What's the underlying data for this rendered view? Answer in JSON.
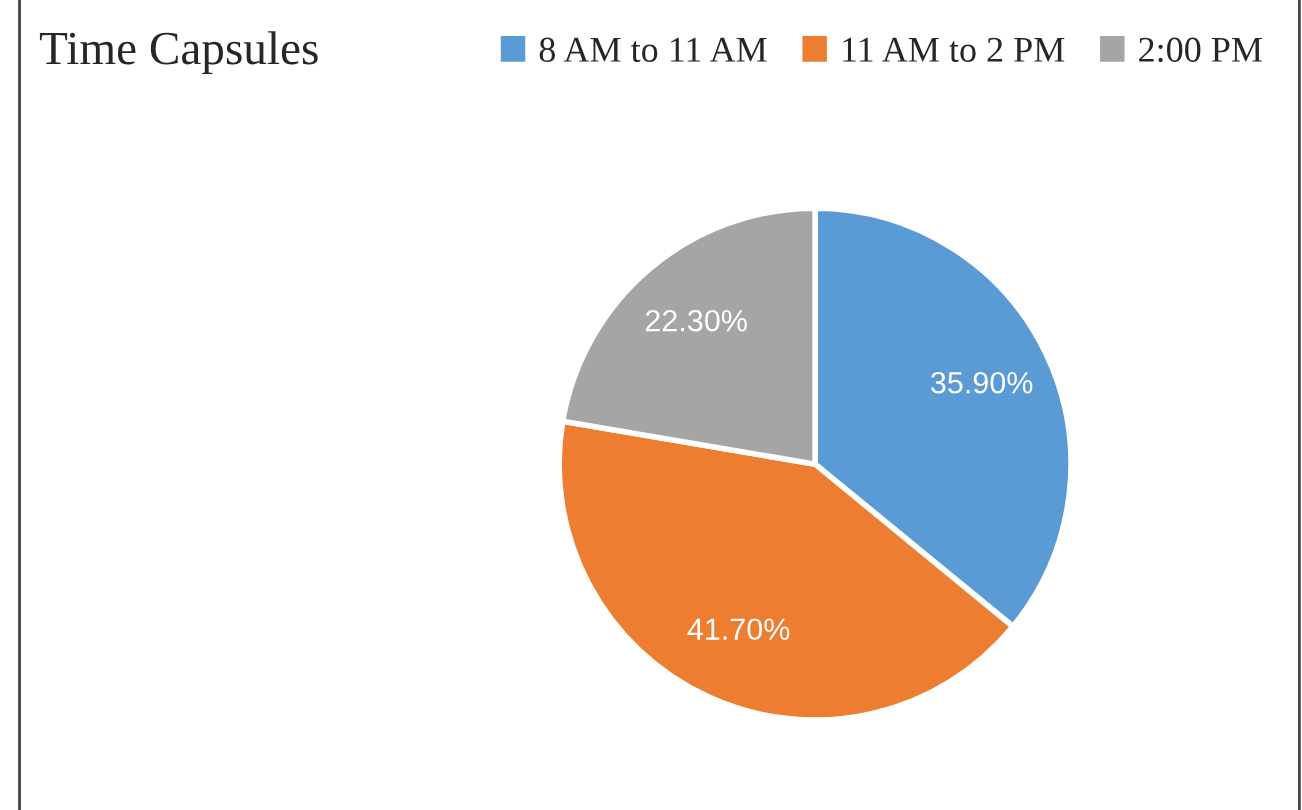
{
  "chart_data": {
    "type": "pie",
    "title": "Time Capsules",
    "categories": [
      "8 AM to 11 AM",
      "11 AM to 2 PM",
      "2:00 PM"
    ],
    "values": [
      35.9,
      41.7,
      22.3
    ],
    "colors": [
      "#5b9bd5",
      "#ed7d31",
      "#a5a5a5"
    ],
    "value_labels": [
      "35.90%",
      "41.70%",
      "22.30%"
    ],
    "legend": "top right"
  }
}
